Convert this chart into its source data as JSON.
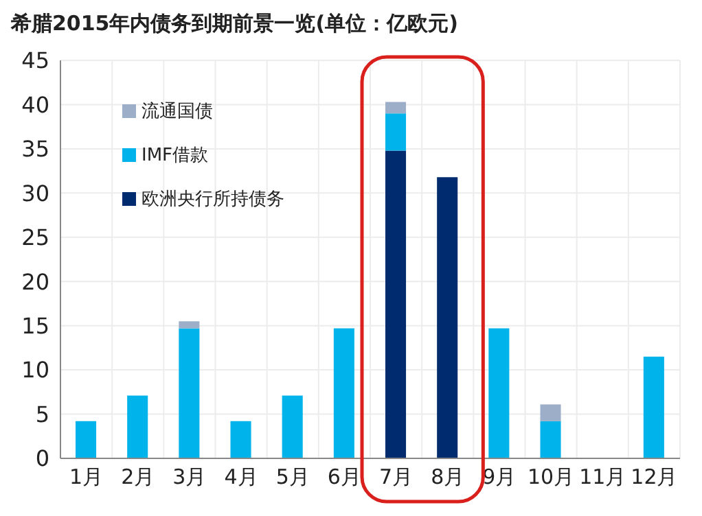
{
  "chart_data": {
    "type": "bar",
    "title": "希腊2015年内债务到期前景一览(单位：亿欧元)",
    "categories": [
      "1月",
      "2月",
      "3月",
      "4月",
      "5月",
      "6月",
      "7月",
      "8月",
      "9月",
      "10月",
      "11月",
      "12月"
    ],
    "stacked": true,
    "series": [
      {
        "name": "欧洲央行所持债务",
        "color": "#002b6e",
        "values": [
          null,
          null,
          null,
          null,
          null,
          null,
          34.8,
          31.8,
          null,
          null,
          null,
          null
        ]
      },
      {
        "name": "IMF借款",
        "color": "#00b4eb",
        "values": [
          4.2,
          7.1,
          14.7,
          4.2,
          7.1,
          14.7,
          4.2,
          null,
          14.7,
          4.2,
          null,
          11.5
        ]
      },
      {
        "name": "流通国债",
        "color": "#9dafc8",
        "values": [
          null,
          null,
          0.8,
          null,
          null,
          null,
          1.3,
          null,
          null,
          1.9,
          null,
          null
        ]
      }
    ],
    "ylim": [
      0,
      45
    ],
    "yticks": [
      0,
      5,
      10,
      15,
      20,
      25,
      30,
      35,
      40,
      45
    ],
    "grid": true,
    "legend": "top left"
  }
}
